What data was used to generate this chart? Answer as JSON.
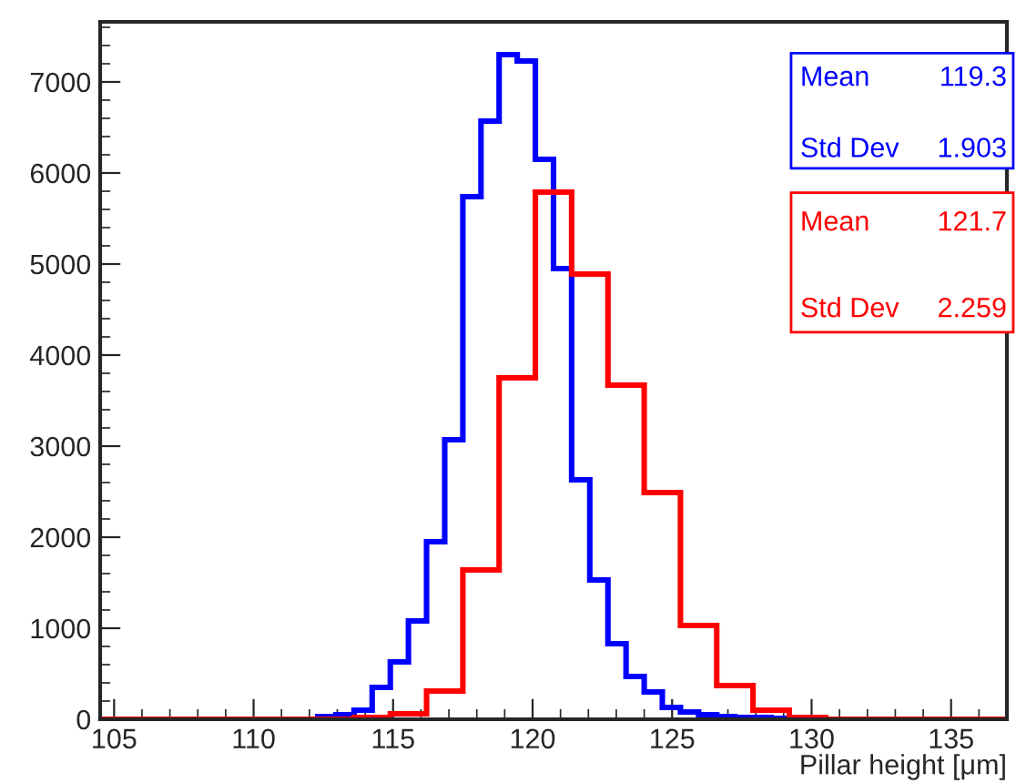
{
  "chart_data": {
    "type": "histogram",
    "xlabel": "Pillar height [μm]",
    "xlim": [
      104.5,
      137
    ],
    "xticks": [
      105,
      110,
      115,
      120,
      125,
      130,
      135
    ],
    "ylim": [
      0,
      7660
    ],
    "yticks": [
      0,
      1000,
      2000,
      3000,
      4000,
      5000,
      6000,
      7000
    ],
    "grid": false,
    "bins": [
      104.5,
      105.15,
      105.8,
      106.45,
      107.1,
      107.75,
      108.4,
      109.05,
      109.7,
      110.35,
      111,
      111.65,
      112.3,
      112.95,
      113.6,
      114.25,
      114.9,
      115.55,
      116.2,
      116.85,
      117.5,
      118.15,
      118.8,
      119.45,
      120.1,
      120.75,
      121.4,
      122.05,
      122.7,
      123.35,
      124,
      124.65,
      125.3,
      125.95,
      126.6,
      127.25,
      127.9,
      128.55,
      129.2,
      129.85,
      130.5,
      131.15,
      131.8,
      132.45,
      133.1,
      133.75,
      134.4,
      135.05,
      135.7,
      136.35,
      137
    ],
    "series": [
      {
        "color": "#0000ff",
        "bins": [
          112.3,
          112.95,
          113.6,
          114.25,
          114.9,
          115.55,
          116.2,
          116.85,
          117.5,
          118.15,
          118.8,
          119.45,
          120.1,
          120.75,
          121.4,
          122.05,
          122.7,
          123.35,
          124,
          124.65,
          125.3,
          125.95,
          126.6,
          127.25,
          127.9,
          128.55,
          129.2
        ],
        "values": [
          30,
          50,
          100,
          350,
          630,
          1080,
          1950,
          3070,
          5740,
          6570,
          7300,
          7230,
          6150,
          4950,
          2630,
          1530,
          830,
          470,
          300,
          130,
          80,
          50,
          30,
          20,
          20,
          10
        ]
      },
      {
        "color": "#ff0000",
        "values": [
          0,
          0,
          0,
          0,
          0,
          0,
          0,
          0,
          0,
          0,
          0,
          0,
          0,
          0,
          20,
          20,
          60,
          60,
          310,
          310,
          1640,
          1640,
          3750,
          3750,
          5790,
          5790,
          4890,
          4890,
          3670,
          3670,
          2490,
          2490,
          1030,
          1030,
          370,
          370,
          100,
          100,
          20,
          20,
          0,
          0,
          0,
          0,
          0,
          0,
          0,
          0,
          0,
          0
        ]
      }
    ],
    "annotations": [
      "Mean 119.3\nStd Dev 1.903",
      "Mean 121.7\nStd Dev 2.259"
    ]
  }
}
